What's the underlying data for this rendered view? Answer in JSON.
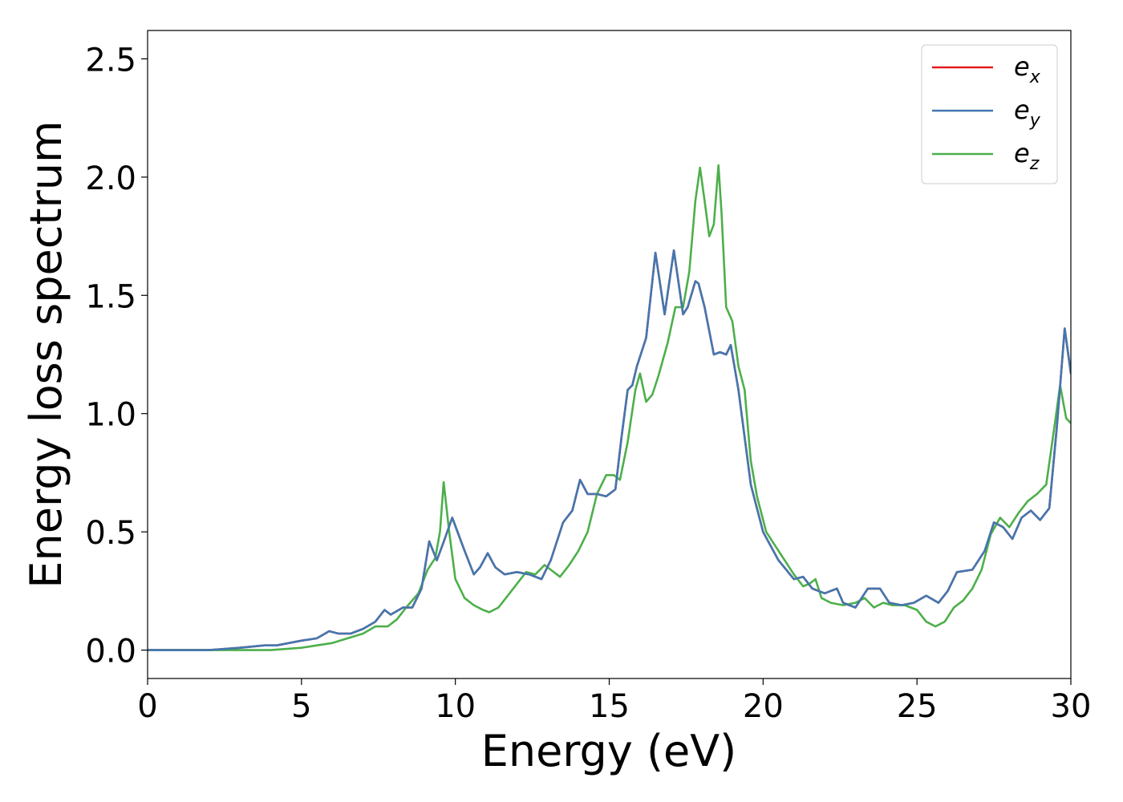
{
  "chart_data": {
    "type": "line",
    "title": "",
    "xlabel": "Energy (eV)",
    "ylabel": "Energy loss spectrum",
    "xlim": [
      0,
      30
    ],
    "ylim": [
      -0.12,
      2.62
    ],
    "xticks": [
      0,
      5,
      10,
      15,
      20,
      25,
      30
    ],
    "xtick_labels": [
      "0",
      "5",
      "10",
      "15",
      "20",
      "25",
      "30"
    ],
    "yticks": [
      0.0,
      0.5,
      1.0,
      1.5,
      2.0,
      2.5
    ],
    "ytick_labels": [
      "0.0",
      "0.5",
      "1.0",
      "1.5",
      "2.0",
      "2.5"
    ],
    "grid": false,
    "legend_position": "top-right",
    "series": [
      {
        "name": "e",
        "subscript": "x",
        "color": "#e41a1c",
        "x": [
          0,
          2,
          3,
          3.8,
          4.2,
          5,
          5.5,
          5.9,
          6.2,
          6.6,
          7,
          7.4,
          7.7,
          7.9,
          8.3,
          8.6,
          8.9,
          9.15,
          9.4,
          9.6,
          9.9,
          10.3,
          10.6,
          10.8,
          11.05,
          11.3,
          11.6,
          12,
          12.4,
          12.8,
          13.1,
          13.5,
          13.8,
          14.05,
          14.3,
          14.6,
          14.9,
          15.2,
          15.4,
          15.6,
          15.75,
          15.9,
          16.2,
          16.5,
          16.8,
          17.1,
          17.4,
          17.55,
          17.8,
          17.9,
          18.1,
          18.4,
          18.6,
          18.8,
          18.95,
          19.2,
          19.6,
          20,
          20.5,
          21,
          21.3,
          21.6,
          22,
          22.4,
          22.6,
          23,
          23.4,
          23.8,
          24.1,
          24.5,
          24.9,
          25.3,
          25.7,
          26,
          26.3,
          26.8,
          27.2,
          27.5,
          27.8,
          28.1,
          28.4,
          28.7,
          29.0,
          29.3,
          29.55,
          29.8,
          30
        ],
        "values": [
          0.0,
          0.0,
          0.01,
          0.02,
          0.02,
          0.04,
          0.05,
          0.08,
          0.07,
          0.07,
          0.09,
          0.12,
          0.17,
          0.15,
          0.18,
          0.18,
          0.26,
          0.46,
          0.38,
          0.45,
          0.56,
          0.42,
          0.32,
          0.35,
          0.41,
          0.35,
          0.32,
          0.33,
          0.32,
          0.3,
          0.38,
          0.54,
          0.59,
          0.72,
          0.66,
          0.66,
          0.65,
          0.68,
          0.9,
          1.1,
          1.12,
          1.2,
          1.32,
          1.68,
          1.42,
          1.69,
          1.42,
          1.45,
          1.56,
          1.55,
          1.45,
          1.25,
          1.26,
          1.25,
          1.29,
          1.1,
          0.7,
          0.5,
          0.38,
          0.3,
          0.31,
          0.26,
          0.24,
          0.26,
          0.2,
          0.18,
          0.26,
          0.26,
          0.2,
          0.19,
          0.2,
          0.23,
          0.2,
          0.25,
          0.33,
          0.34,
          0.42,
          0.54,
          0.52,
          0.47,
          0.56,
          0.59,
          0.55,
          0.6,
          0.95,
          1.36,
          1.17
        ]
      },
      {
        "name": "e",
        "subscript": "y",
        "color": "#4277b0",
        "x": [
          0,
          2,
          3,
          3.8,
          4.2,
          5,
          5.5,
          5.9,
          6.2,
          6.6,
          7,
          7.4,
          7.7,
          7.9,
          8.3,
          8.6,
          8.9,
          9.15,
          9.4,
          9.6,
          9.9,
          10.3,
          10.6,
          10.8,
          11.05,
          11.3,
          11.6,
          12,
          12.4,
          12.8,
          13.1,
          13.5,
          13.8,
          14.05,
          14.3,
          14.6,
          14.9,
          15.2,
          15.4,
          15.6,
          15.75,
          15.9,
          16.2,
          16.5,
          16.8,
          17.1,
          17.4,
          17.55,
          17.8,
          17.9,
          18.1,
          18.4,
          18.6,
          18.8,
          18.95,
          19.2,
          19.6,
          20,
          20.5,
          21,
          21.3,
          21.6,
          22,
          22.4,
          22.6,
          23,
          23.4,
          23.8,
          24.1,
          24.5,
          24.9,
          25.3,
          25.7,
          26,
          26.3,
          26.8,
          27.2,
          27.5,
          27.8,
          28.1,
          28.4,
          28.7,
          29.0,
          29.3,
          29.55,
          29.8,
          30
        ],
        "values": [
          0.0,
          0.0,
          0.01,
          0.02,
          0.02,
          0.04,
          0.05,
          0.08,
          0.07,
          0.07,
          0.09,
          0.12,
          0.17,
          0.15,
          0.18,
          0.18,
          0.26,
          0.46,
          0.38,
          0.45,
          0.56,
          0.42,
          0.32,
          0.35,
          0.41,
          0.35,
          0.32,
          0.33,
          0.32,
          0.3,
          0.38,
          0.54,
          0.59,
          0.72,
          0.66,
          0.66,
          0.65,
          0.68,
          0.9,
          1.1,
          1.12,
          1.2,
          1.32,
          1.68,
          1.42,
          1.69,
          1.42,
          1.45,
          1.56,
          1.55,
          1.45,
          1.25,
          1.26,
          1.25,
          1.29,
          1.1,
          0.7,
          0.5,
          0.38,
          0.3,
          0.31,
          0.26,
          0.24,
          0.26,
          0.2,
          0.18,
          0.26,
          0.26,
          0.2,
          0.19,
          0.2,
          0.23,
          0.2,
          0.25,
          0.33,
          0.34,
          0.42,
          0.54,
          0.52,
          0.47,
          0.56,
          0.59,
          0.55,
          0.6,
          0.95,
          1.36,
          1.17
        ]
      },
      {
        "name": "e",
        "subscript": "z",
        "color": "#4daf4a",
        "x": [
          0,
          3,
          4,
          5,
          5.5,
          6,
          6.5,
          7,
          7.4,
          7.8,
          8.1,
          8.4,
          8.8,
          9.1,
          9.35,
          9.5,
          9.62,
          9.8,
          10,
          10.3,
          10.6,
          10.9,
          11.1,
          11.4,
          11.7,
          12.0,
          12.3,
          12.6,
          12.9,
          13.1,
          13.4,
          13.7,
          14,
          14.3,
          14.6,
          14.9,
          15.15,
          15.35,
          15.6,
          15.85,
          16.0,
          16.2,
          16.4,
          16.6,
          16.9,
          17.15,
          17.4,
          17.6,
          17.8,
          17.95,
          18.1,
          18.25,
          18.4,
          18.55,
          18.65,
          18.8,
          19.0,
          19.2,
          19.4,
          19.6,
          19.8,
          20.1,
          20.4,
          20.7,
          21.0,
          21.3,
          21.5,
          21.7,
          21.9,
          22.2,
          22.6,
          23.0,
          23.3,
          23.6,
          23.9,
          24.2,
          24.6,
          25.0,
          25.3,
          25.6,
          25.9,
          26.2,
          26.5,
          26.8,
          27.1,
          27.4,
          27.7,
          28.0,
          28.3,
          28.6,
          28.9,
          29.2,
          29.45,
          29.65,
          29.85,
          30
        ],
        "values": [
          0.0,
          0.0,
          0.0,
          0.01,
          0.02,
          0.03,
          0.05,
          0.07,
          0.1,
          0.1,
          0.13,
          0.18,
          0.24,
          0.34,
          0.39,
          0.5,
          0.71,
          0.5,
          0.3,
          0.22,
          0.19,
          0.17,
          0.16,
          0.18,
          0.23,
          0.28,
          0.33,
          0.32,
          0.36,
          0.34,
          0.31,
          0.36,
          0.42,
          0.5,
          0.66,
          0.74,
          0.74,
          0.72,
          0.88,
          1.1,
          1.17,
          1.05,
          1.08,
          1.16,
          1.3,
          1.45,
          1.45,
          1.6,
          1.9,
          2.04,
          1.9,
          1.75,
          1.8,
          2.05,
          1.85,
          1.45,
          1.39,
          1.2,
          1.1,
          0.8,
          0.65,
          0.5,
          0.44,
          0.38,
          0.32,
          0.27,
          0.28,
          0.3,
          0.22,
          0.2,
          0.19,
          0.2,
          0.22,
          0.18,
          0.2,
          0.19,
          0.19,
          0.17,
          0.12,
          0.1,
          0.12,
          0.18,
          0.21,
          0.26,
          0.34,
          0.49,
          0.56,
          0.52,
          0.58,
          0.63,
          0.66,
          0.7,
          0.93,
          1.12,
          0.98,
          0.96
        ]
      }
    ]
  }
}
